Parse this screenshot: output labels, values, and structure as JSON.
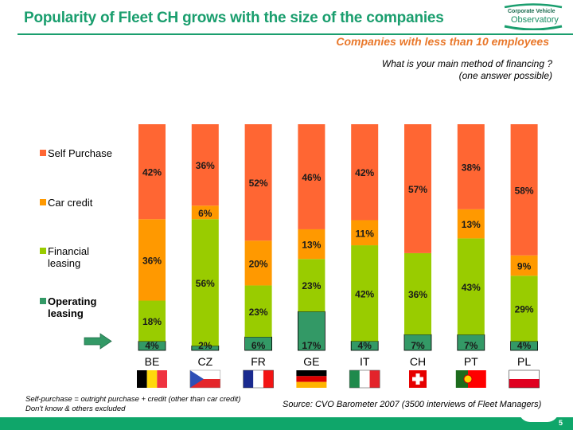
{
  "header": {
    "title": "Popularity of Fleet CH grows with the size of the companies",
    "logo_line1": "Corporate Vehicle",
    "logo_line2": "Observatory",
    "subtitle": "Companies with less than 10 employees",
    "question_line1": "What is your main method of financing ?",
    "question_line2": "(one answer possible)"
  },
  "colors": {
    "title_green": "#1a9e6e",
    "subtitle_orange": "#e9782b",
    "self_purchase": "#ff6633",
    "car_credit": "#ff9900",
    "financial_leasing": "#99cc00",
    "operating_leasing": "#339966",
    "arrow": "#339966",
    "footer": "#0fa66a"
  },
  "chart_data": {
    "type": "bar",
    "stacked": true,
    "normalized": "100%",
    "title": "What is your main method of financing ? (one answer possible)",
    "subtitle": "Companies with less than 10 employees",
    "xlabel": "",
    "ylabel": "",
    "ylim": [
      0,
      100
    ],
    "grid": false,
    "legend_position": "left",
    "categories": [
      "BE",
      "CZ",
      "FR",
      "GE",
      "IT",
      "CH",
      "PT",
      "PL"
    ],
    "highlighted_series": "Operating leasing",
    "series": [
      {
        "name": "Operating leasing",
        "color": "#339966",
        "values": [
          4,
          2,
          6,
          17,
          4,
          7,
          7,
          4
        ]
      },
      {
        "name": "Financial leasing",
        "color": "#99cc00",
        "values": [
          18,
          56,
          23,
          23,
          42,
          36,
          43,
          29
        ]
      },
      {
        "name": "Car credit",
        "color": "#ff9900",
        "values": [
          36,
          6,
          20,
          13,
          11,
          0,
          13,
          9
        ]
      },
      {
        "name": "Self Purchase",
        "color": "#ff6633",
        "values": [
          42,
          36,
          52,
          46,
          42,
          57,
          38,
          58
        ]
      }
    ],
    "data_labels": {
      "Operating leasing": [
        "4%",
        "2%",
        "6%",
        "17%",
        "4%",
        "7%",
        "7%",
        "4%"
      ],
      "Financial leasing": [
        "18%",
        "56%",
        "23%",
        "23%",
        "42%",
        "36%",
        "43%",
        "29%"
      ],
      "Car credit": [
        "36%",
        "6%",
        "20%",
        "13%",
        "11%",
        "",
        "13%",
        "9%"
      ],
      "Self Purchase": [
        "42%",
        "36%",
        "52%",
        "46%",
        "42%",
        "57%",
        "38%",
        "58%"
      ]
    }
  },
  "legend": [
    {
      "label": "Self Purchase",
      "color": "#ff6633",
      "bold": false
    },
    {
      "label": "Car credit",
      "color": "#ff9900",
      "bold": false
    },
    {
      "label_line1": "Financial",
      "label_line2": "leasing",
      "color": "#99cc00",
      "bold": false
    },
    {
      "label_line1": "Operating",
      "label_line2": "leasing",
      "color": "#339966",
      "bold": true
    }
  ],
  "flags": {
    "BE": "belgium-flag",
    "CZ": "czech-flag",
    "FR": "france-flag",
    "GE": "germany-flag",
    "IT": "italy-flag",
    "CH": "switzerland-flag",
    "PT": "portugal-flag",
    "PL": "poland-flag"
  },
  "footer": {
    "note_line1": "Self-purchase = outright purchase + credit (other than car credit)",
    "note_line2": "Don't know & others excluded",
    "source": "Source: CVO Barometer 2007 (3500 interviews of Fleet Managers)",
    "page_number": "5"
  }
}
